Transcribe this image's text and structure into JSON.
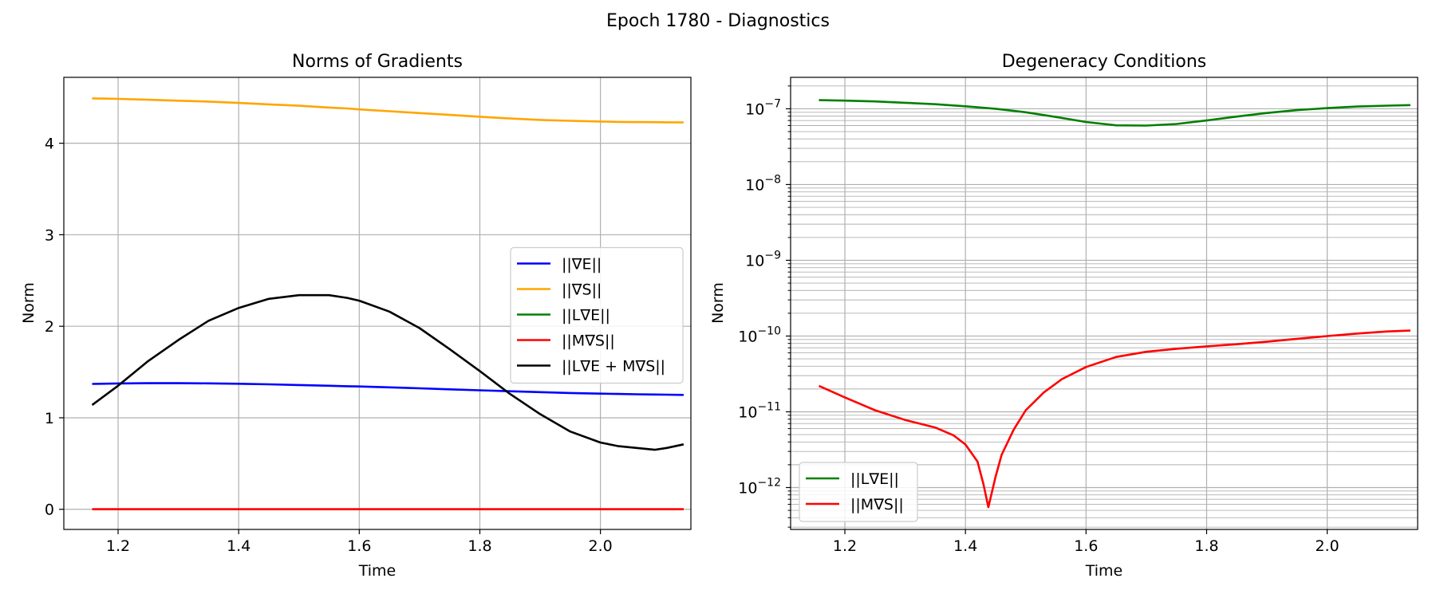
{
  "suptitle": "Epoch 1780 - Diagnostics",
  "chart_data": [
    {
      "type": "line",
      "title": "Norms of Gradients",
      "xlabel": "Time",
      "ylabel": "Norm",
      "xlim": [
        1.11,
        2.15
      ],
      "ylim": [
        -0.22,
        4.72
      ],
      "yscale": "linear",
      "xticks": [
        "1.2",
        "1.4",
        "1.6",
        "1.8",
        "2.0"
      ],
      "xtick_values": [
        1.2,
        1.4,
        1.6,
        1.8,
        2.0
      ],
      "yticks": [
        "0",
        "1",
        "2",
        "3",
        "4"
      ],
      "ytick_values": [
        0,
        1,
        2,
        3,
        4
      ],
      "grid": true,
      "legend_position": "center-right",
      "x": [
        1.157,
        1.2,
        1.25,
        1.3,
        1.35,
        1.4,
        1.45,
        1.5,
        1.55,
        1.58,
        1.6,
        1.65,
        1.7,
        1.75,
        1.8,
        1.85,
        1.9,
        1.95,
        2.0,
        2.03,
        2.06,
        2.09,
        2.11,
        2.138
      ],
      "series": [
        {
          "name": "||∇E||",
          "color": "#0000ff",
          "values": [
            1.37,
            1.375,
            1.378,
            1.378,
            1.376,
            1.372,
            1.366,
            1.358,
            1.35,
            1.345,
            1.342,
            1.333,
            1.322,
            1.311,
            1.3,
            1.29,
            1.28,
            1.271,
            1.264,
            1.26,
            1.257,
            1.254,
            1.252,
            1.25
          ]
        },
        {
          "name": "||∇S||",
          "color": "#ffa500",
          "values": [
            4.49,
            4.485,
            4.475,
            4.465,
            4.455,
            4.44,
            4.425,
            4.41,
            4.39,
            4.38,
            4.37,
            4.35,
            4.33,
            4.31,
            4.29,
            4.27,
            4.255,
            4.245,
            4.237,
            4.233,
            4.231,
            4.23,
            4.229,
            4.228
          ]
        },
        {
          "name": "||L∇E||",
          "color": "#008000",
          "values": [
            0,
            0,
            0,
            0,
            0,
            0,
            0,
            0,
            0,
            0,
            0,
            0,
            0,
            0,
            0,
            0,
            0,
            0,
            0,
            0,
            0,
            0,
            0,
            0
          ]
        },
        {
          "name": "||M∇S||",
          "color": "#ff0000",
          "values": [
            0,
            0,
            0,
            0,
            0,
            0,
            0,
            0,
            0,
            0,
            0,
            0,
            0,
            0,
            0,
            0,
            0,
            0,
            0,
            0,
            0,
            0,
            0,
            0
          ]
        },
        {
          "name": "||L∇E + M∇S||",
          "color": "#000000",
          "values": [
            1.14,
            1.35,
            1.62,
            1.85,
            2.06,
            2.2,
            2.3,
            2.34,
            2.34,
            2.31,
            2.28,
            2.16,
            1.98,
            1.75,
            1.51,
            1.26,
            1.04,
            0.85,
            0.73,
            0.69,
            0.67,
            0.65,
            0.67,
            0.71
          ]
        }
      ]
    },
    {
      "type": "line",
      "title": "Degeneracy Conditions",
      "xlabel": "Time",
      "ylabel": "Norm",
      "xlim": [
        1.11,
        2.15
      ],
      "ylim": [
        2.8e-13,
        2.6e-07
      ],
      "yscale": "log",
      "xticks": [
        "1.2",
        "1.4",
        "1.6",
        "1.8",
        "2.0"
      ],
      "xtick_values": [
        1.2,
        1.4,
        1.6,
        1.8,
        2.0
      ],
      "yticks": [
        "10",
        "10",
        "10",
        "10",
        "10",
        "10"
      ],
      "ytick_exponents": [
        "−12",
        "−11",
        "−10",
        "−9",
        "−8",
        "−7"
      ],
      "ytick_values": [
        -12,
        -11,
        -10,
        -9,
        -8,
        -7
      ],
      "grid": "both (major and minor)",
      "legend_position": "lower-left",
      "series": [
        {
          "name": "||L∇E||",
          "color": "#008000",
          "x": [
            1.157,
            1.2,
            1.25,
            1.3,
            1.35,
            1.4,
            1.45,
            1.5,
            1.55,
            1.6,
            1.65,
            1.7,
            1.75,
            1.8,
            1.85,
            1.9,
            1.95,
            2.0,
            2.05,
            2.1,
            2.138
          ],
          "values": [
            1.3e-07,
            1.28e-07,
            1.25e-07,
            1.2e-07,
            1.15e-07,
            1.08e-07,
            1e-07,
            9e-08,
            7.8e-08,
            6.7e-08,
            6.05e-08,
            6e-08,
            6.3e-08,
            7e-08,
            7.9e-08,
            8.8e-08,
            9.6e-08,
            1.02e-07,
            1.07e-07,
            1.1e-07,
            1.12e-07
          ]
        },
        {
          "name": "||M∇S||",
          "color": "#ff0000",
          "x": [
            1.157,
            1.2,
            1.25,
            1.3,
            1.35,
            1.38,
            1.4,
            1.42,
            1.43,
            1.438,
            1.45,
            1.46,
            1.48,
            1.5,
            1.53,
            1.56,
            1.6,
            1.65,
            1.7,
            1.75,
            1.8,
            1.85,
            1.9,
            1.95,
            2.0,
            2.05,
            2.1,
            2.138
          ],
          "values": [
            2.2e-11,
            1.55e-11,
            1.05e-11,
            7.8e-12,
            6.2e-12,
            4.9e-12,
            3.7e-12,
            2.2e-12,
            1.1e-12,
            5.5e-13,
            1.4e-12,
            2.7e-12,
            5.8e-12,
            1.05e-11,
            1.8e-11,
            2.7e-11,
            3.9e-11,
            5.3e-11,
            6.2e-11,
            6.8e-11,
            7.3e-11,
            7.8e-11,
            8.4e-11,
            9.2e-11,
            1e-10,
            1.08e-10,
            1.15e-10,
            1.18e-10
          ]
        }
      ]
    }
  ]
}
